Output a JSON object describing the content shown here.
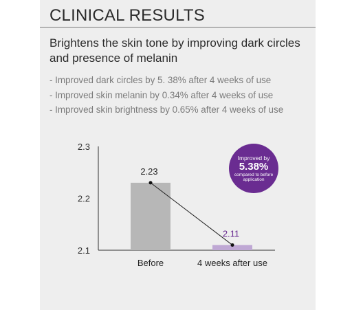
{
  "header": {
    "title": "CLINICAL RESULTS",
    "subtitle": "Brightens the skin tone by improving dark circles and presence of melanin"
  },
  "bullets": [
    "- Improved dark circles by 5. 38% after 4 weeks of use",
    "- Improved skin melanin by 0.34% after 4 weeks of use",
    "- Improved skin brightness by 0.65% after 4 weeks of use"
  ],
  "badge": {
    "line1": "Improved by",
    "value": "5.38%",
    "line3": "compared to before application",
    "color": "#6a2c91"
  },
  "chart_data": {
    "type": "bar",
    "categories": [
      "Before",
      "4 weeks after use"
    ],
    "values": [
      2.23,
      2.11
    ],
    "value_labels": [
      "2.23",
      "2.11"
    ],
    "ylim": [
      2.1,
      2.3
    ],
    "yticks": [
      2.3,
      2.2,
      2.1
    ],
    "ytick_labels": [
      "2.3",
      "2.2",
      "2.1"
    ],
    "bar_colors": [
      "#b7b7b7",
      "#bfa8d4"
    ],
    "value_label_colors": [
      "#222222",
      "#6a2c91"
    ],
    "trend_line": true,
    "grid": false
  }
}
